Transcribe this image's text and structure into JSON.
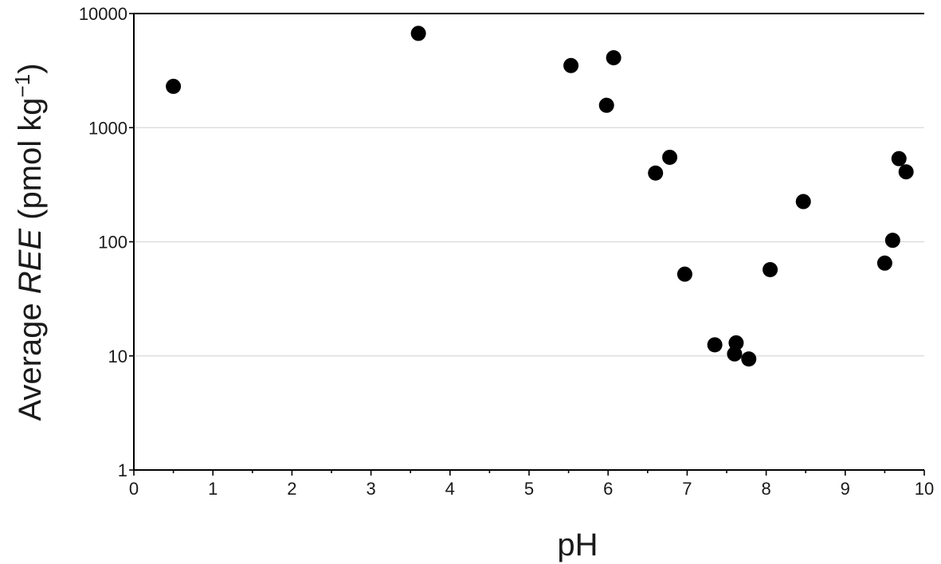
{
  "chart_data": {
    "type": "scatter",
    "title": "",
    "xlabel": "pH",
    "ylabel": {
      "prefix": "Average ",
      "italic": "REE",
      "suffix": " (pmol kg",
      "superscript": "−1",
      "close": ")"
    },
    "xlim": [
      0,
      10
    ],
    "ylim": [
      1,
      10000
    ],
    "yscale": "log",
    "grid": "horizontal major",
    "legend": "none",
    "x_ticks": [
      "0",
      "1",
      "2",
      "3",
      "4",
      "5",
      "6",
      "7",
      "8",
      "9",
      "10"
    ],
    "y_ticks": [
      "1",
      "10",
      "100",
      "1000",
      "10000"
    ],
    "marker_color": "#000000",
    "points": [
      {
        "x": 0.5,
        "y": 2300
      },
      {
        "x": 3.6,
        "y": 6700
      },
      {
        "x": 5.53,
        "y": 3500
      },
      {
        "x": 5.98,
        "y": 1570
      },
      {
        "x": 6.07,
        "y": 4100
      },
      {
        "x": 6.6,
        "y": 400
      },
      {
        "x": 6.78,
        "y": 550
      },
      {
        "x": 6.97,
        "y": 52
      },
      {
        "x": 7.35,
        "y": 12.5
      },
      {
        "x": 7.6,
        "y": 10.4
      },
      {
        "x": 7.62,
        "y": 13
      },
      {
        "x": 7.78,
        "y": 9.4
      },
      {
        "x": 8.05,
        "y": 57
      },
      {
        "x": 8.47,
        "y": 225
      },
      {
        "x": 9.5,
        "y": 65
      },
      {
        "x": 9.6,
        "y": 103
      },
      {
        "x": 9.68,
        "y": 535
      },
      {
        "x": 9.77,
        "y": 410
      }
    ]
  }
}
